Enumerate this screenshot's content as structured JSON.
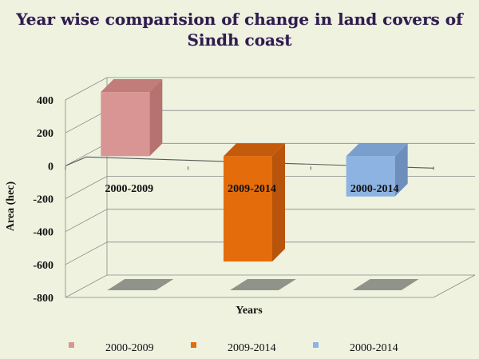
{
  "chart_data": {
    "type": "bar",
    "title_lines": [
      "Year wise comparision of change in land covers of",
      "Sindh coast"
    ],
    "xlabel": "Years",
    "ylabel": "Area (hec)",
    "categories": [
      "2000-2009",
      "2009-2014",
      "2000-2014"
    ],
    "values": [
      390,
      -640,
      -245
    ],
    "ylim": [
      -800,
      400
    ],
    "yticks": [
      "400",
      "200",
      "0",
      "-200",
      "-400",
      "-600",
      "-800"
    ],
    "grid": true,
    "legend": {
      "placement": "bottom",
      "entries": [
        "2000-2009",
        "2009-2014",
        "2000-2014"
      ]
    },
    "colors": [
      "#d99594",
      "#e46c0a",
      "#8db3e2"
    ],
    "side_colors": [
      "#b5726f",
      "#b8540c",
      "#6e8fbd"
    ],
    "top_colors": [
      "#c27c7a",
      "#c45a0b",
      "#7b9fcd"
    ]
  }
}
